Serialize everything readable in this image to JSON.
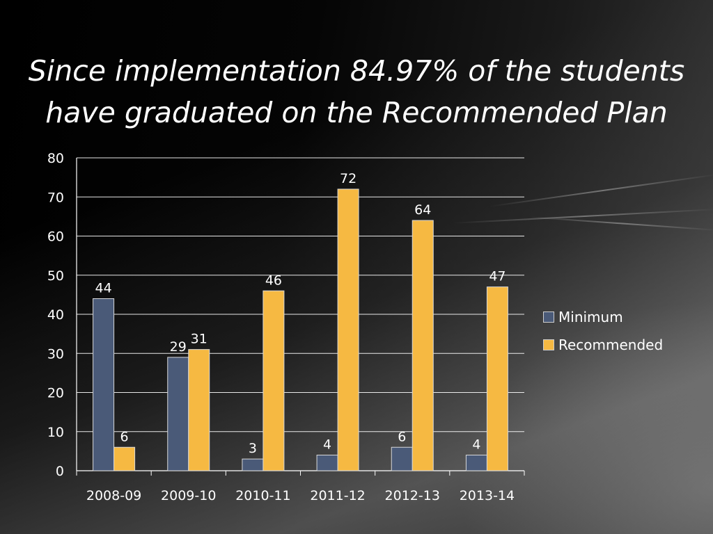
{
  "slide": {
    "title_line1": "Since implementation 84.97% of the students",
    "title_line2": "have graduated on the Recommended Plan"
  },
  "colors": {
    "minimum": "#4a5a78",
    "recommended": "#f6b942",
    "grid": "#ffffff",
    "text": "#ffffff"
  },
  "chart_data": {
    "type": "bar",
    "categories": [
      "2008-09",
      "2009-10",
      "2010-11",
      "2011-12",
      "2012-13",
      "2013-14"
    ],
    "series": [
      {
        "name": "Minimum",
        "values": [
          44,
          29,
          3,
          4,
          6,
          4
        ]
      },
      {
        "name": "Recommended",
        "values": [
          6,
          31,
          46,
          72,
          64,
          47
        ]
      }
    ],
    "ylim": [
      0,
      80
    ],
    "yticks": [
      0,
      10,
      20,
      30,
      40,
      50,
      60,
      70,
      80
    ],
    "grid": true,
    "legend": "right",
    "xlabel": "",
    "ylabel": ""
  }
}
